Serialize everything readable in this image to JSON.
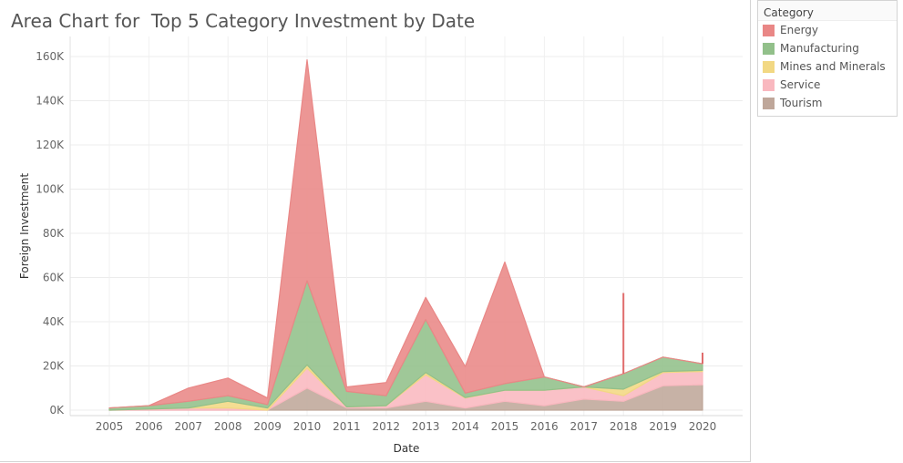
{
  "chart_data": {
    "type": "area",
    "title": "Area Chart for  Top 5 Category Investment by Date",
    "xlabel": "Date",
    "ylabel": "Foreign Investment",
    "ylim": [
      0,
      160000
    ],
    "y_ticks": [
      "0K",
      "20K",
      "40K",
      "60K",
      "80K",
      "100K",
      "120K",
      "140K",
      "160K"
    ],
    "y_tick_values": [
      0,
      20000,
      40000,
      60000,
      80000,
      100000,
      120000,
      140000,
      160000
    ],
    "x_ticks": [
      "2005",
      "2006",
      "2007",
      "2008",
      "2009",
      "2010",
      "2011",
      "2012",
      "2013",
      "2014",
      "2015",
      "2016",
      "2017",
      "2018",
      "2019",
      "2020"
    ],
    "stacked": true,
    "grid": true,
    "legend_position": "right",
    "series": [
      {
        "name": "Tourism",
        "color": "#bfa79a",
        "values": [
          0,
          0,
          0,
          0,
          0,
          10000,
          1000,
          1000,
          4000,
          1000,
          4000,
          2000,
          5000,
          4000,
          11000,
          11500
        ]
      },
      {
        "name": "Service",
        "color": "#f9b8bf",
        "values": [
          0,
          500,
          1000,
          1000,
          0,
          9000,
          500,
          1000,
          12000,
          4500,
          5000,
          7000,
          5500,
          2500,
          6000,
          6000
        ]
      },
      {
        "name": "Mines and Minerals",
        "color": "#f2d883",
        "values": [
          0,
          0,
          0,
          3000,
          1000,
          1500,
          0,
          0,
          1000,
          200,
          0,
          0,
          0,
          3000,
          500,
          500
        ]
      },
      {
        "name": "Manufacturing",
        "color": "#92c08a",
        "values": [
          1000,
          1500,
          3000,
          2500,
          1500,
          38000,
          7000,
          4500,
          24000,
          2000,
          3000,
          6000,
          0,
          7000,
          6500,
          3000
        ]
      },
      {
        "name": "Energy",
        "color": "#e98786",
        "values": [
          0,
          0,
          6000,
          8000,
          3000,
          100000,
          2000,
          6000,
          10000,
          12000,
          55000,
          0,
          0,
          0,
          0,
          0
        ]
      }
    ],
    "spikes": [
      {
        "x": "2018",
        "value": 53000,
        "color": "#e06c6c"
      },
      {
        "x": "2020",
        "value": 26000,
        "color": "#e06c6c"
      }
    ]
  },
  "legend": {
    "title": "Category",
    "items": [
      {
        "label": "Energy",
        "color": "#e98786"
      },
      {
        "label": "Manufacturing",
        "color": "#92c08a"
      },
      {
        "label": "Mines and Minerals",
        "color": "#f2d883"
      },
      {
        "label": "Service",
        "color": "#f9b8bf"
      },
      {
        "label": "Tourism",
        "color": "#bfa79a"
      }
    ]
  }
}
